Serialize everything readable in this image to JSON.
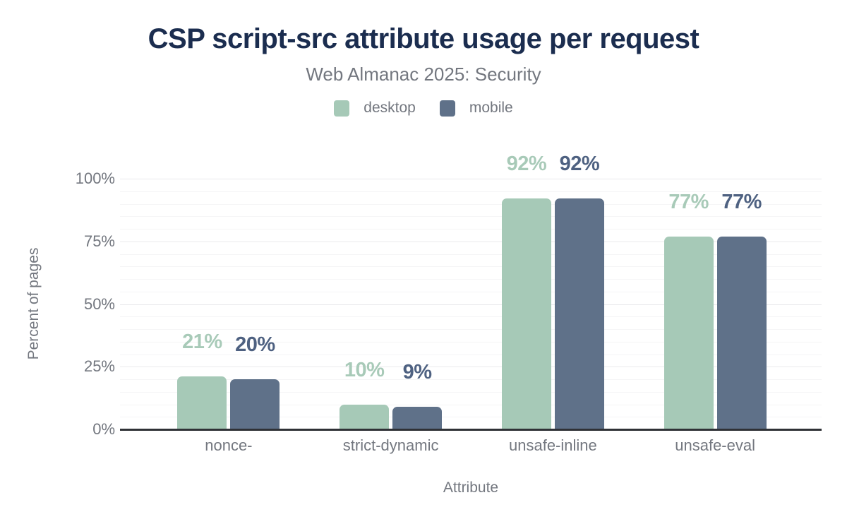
{
  "chart_data": {
    "type": "bar",
    "title": "CSP script-src attribute usage per request",
    "subtitle": "Web Almanac 2025: Security",
    "categories": [
      "nonce-",
      "strict-dynamic",
      "unsafe-inline",
      "unsafe-eval"
    ],
    "series": [
      {
        "name": "desktop",
        "values": [
          21,
          10,
          92,
          77
        ],
        "color": "#a6c9b7",
        "label_color": "#a8cab8"
      },
      {
        "name": "mobile",
        "values": [
          20,
          9,
          92,
          77
        ],
        "color": "#5f7189",
        "label_color": "#4e6181"
      }
    ],
    "value_labels": [
      [
        "21%",
        "10%",
        "92%",
        "77%"
      ],
      [
        "20%",
        "9%",
        "92%",
        "77%"
      ]
    ],
    "xlabel": "Attribute",
    "ylabel": "Percent of pages",
    "ylim": [
      0,
      100
    ],
    "yticks": [
      0,
      25,
      50,
      75,
      100
    ],
    "ytick_labels": [
      "0%",
      "25%",
      "50%",
      "75%",
      "100%"
    ],
    "minor_grid_step": 5,
    "grid": "on",
    "legend_position": "top",
    "colors": {
      "title": "#1b2d4f",
      "text": "#73777f",
      "axis_line": "#2f3136",
      "grid_major": "#e9e9ec",
      "grid_minor": "#f5f5f6",
      "background": "#ffffff"
    }
  }
}
